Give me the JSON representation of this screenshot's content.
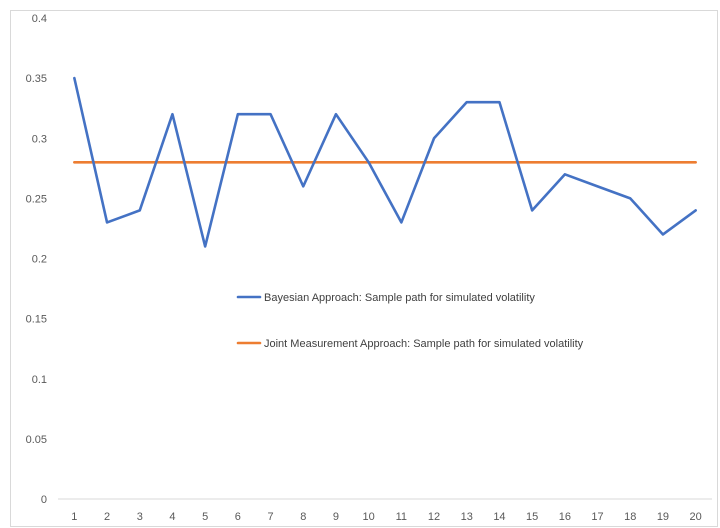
{
  "chart_data": {
    "type": "line",
    "title": "",
    "xlabel": "",
    "ylabel": "",
    "categories": [
      "1",
      "2",
      "3",
      "4",
      "5",
      "6",
      "7",
      "8",
      "9",
      "10",
      "11",
      "12",
      "13",
      "14",
      "15",
      "16",
      "17",
      "18",
      "19",
      "20"
    ],
    "ylim": [
      0,
      0.4
    ],
    "y_ticks": [
      "0",
      "0.05",
      "0.1",
      "0.15",
      "0.2",
      "0.25",
      "0.3",
      "0.35",
      "0.4"
    ],
    "y_tick_values": [
      0,
      0.05,
      0.1,
      0.15,
      0.2,
      0.25,
      0.3,
      0.35,
      0.4
    ],
    "grid": false,
    "legend_position": "inside-center",
    "series": [
      {
        "name": "Bayesian Approach: Sample path for simulated volatility",
        "color": "#4472c4",
        "values": [
          0.35,
          0.23,
          0.24,
          0.32,
          0.21,
          0.32,
          0.32,
          0.26,
          0.32,
          0.28,
          0.23,
          0.3,
          0.33,
          0.33,
          0.24,
          0.27,
          0.26,
          0.25,
          0.22,
          0.24
        ]
      },
      {
        "name": "Joint Measurement Approach: Sample path for simulated volatility",
        "color": "#ed7d31",
        "values": [
          0.28,
          0.28,
          0.28,
          0.28,
          0.28,
          0.28,
          0.28,
          0.28,
          0.28,
          0.28,
          0.28,
          0.28,
          0.28,
          0.28,
          0.28,
          0.28,
          0.28,
          0.28,
          0.28,
          0.28
        ]
      }
    ]
  }
}
